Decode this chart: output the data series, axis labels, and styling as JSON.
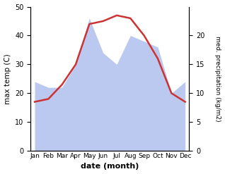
{
  "months": [
    "Jan",
    "Feb",
    "Mar",
    "Apr",
    "May",
    "Jun",
    "Jul",
    "Aug",
    "Sep",
    "Oct",
    "Nov",
    "Dec"
  ],
  "temperature": [
    17,
    18,
    23,
    30,
    44,
    45,
    47,
    46,
    40,
    32,
    20,
    17
  ],
  "precipitation": [
    12,
    11,
    11,
    15,
    23,
    17,
    15,
    20,
    19,
    18,
    10,
    12
  ],
  "temp_ylim": [
    0,
    50
  ],
  "precip_ylim": [
    0,
    25
  ],
  "temp_yticks": [
    0,
    10,
    20,
    30,
    40,
    50
  ],
  "precip_yticks": [
    0,
    5,
    10,
    15,
    20
  ],
  "temp_color": "#cc3333",
  "precip_fill_color": "#bbc8ef",
  "xlabel": "date (month)",
  "ylabel_left": "max temp (C)",
  "ylabel_right": "med. precipitation (kg/m2)",
  "bg_color": "#ffffff",
  "temp_linewidth": 1.8
}
